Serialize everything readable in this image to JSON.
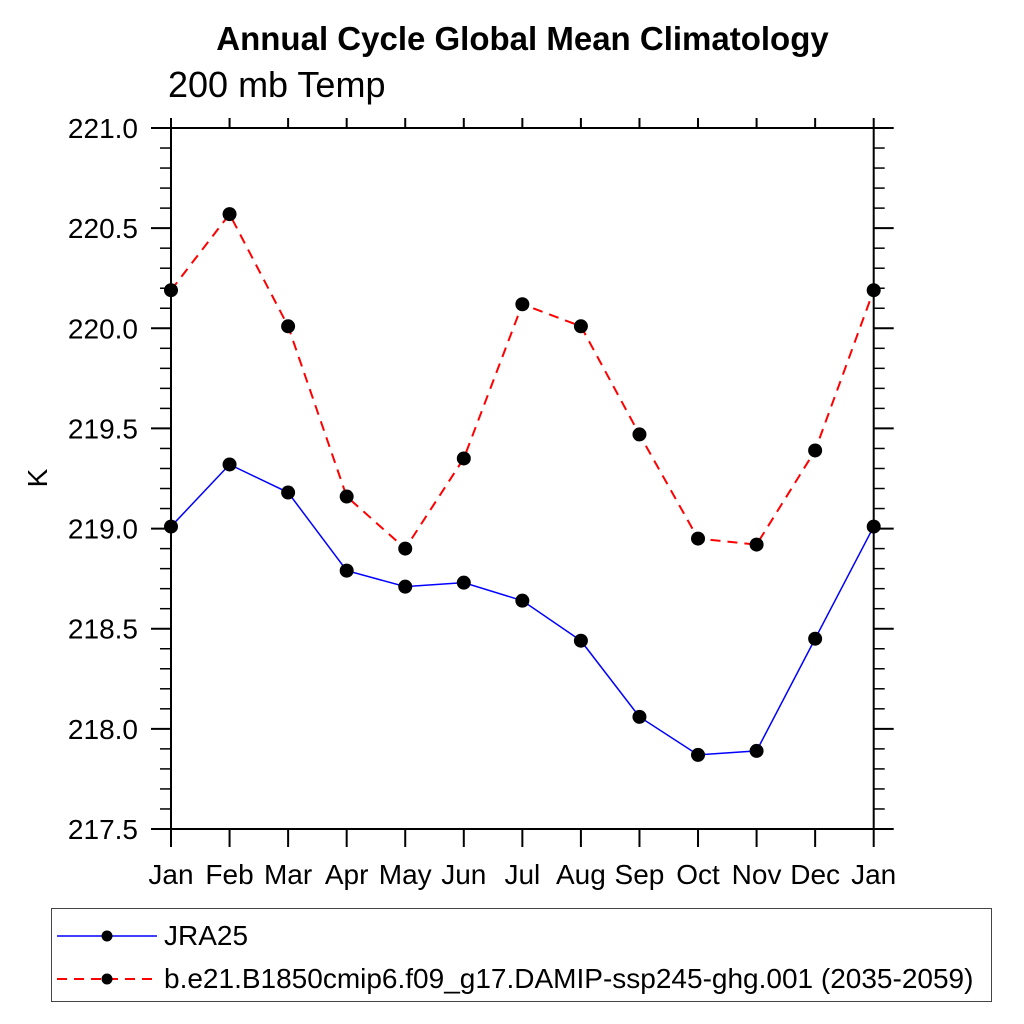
{
  "title": "Annual Cycle Global Mean Climatology",
  "subtitle": "200 mb Temp",
  "ylabel": "K",
  "chart_data": {
    "type": "line",
    "categories": [
      "Jan",
      "Feb",
      "Mar",
      "Apr",
      "May",
      "Jun",
      "Jul",
      "Aug",
      "Sep",
      "Oct",
      "Nov",
      "Dec",
      "Jan"
    ],
    "ylim": [
      217.5,
      221.0
    ],
    "y_tick_labels": [
      "217.5",
      "218.0",
      "218.5",
      "219.0",
      "219.5",
      "220.0",
      "220.5",
      "221.0"
    ],
    "y_minor_step": 0.1,
    "grid": false,
    "legend_position": "bottom-left-box",
    "series": [
      {
        "name": "JRA25",
        "color": "#0000ff",
        "line_style": "solid",
        "marker": "filled-circle",
        "marker_color": "#000000",
        "values": [
          219.01,
          219.32,
          219.18,
          218.79,
          218.71,
          218.73,
          218.64,
          218.44,
          218.06,
          217.87,
          217.89,
          218.45,
          219.01
        ]
      },
      {
        "name": "b.e21.B1850cmip6.f09_g17.DAMIP-ssp245-ghg.001 (2035-2059)",
        "color": "#ff0000",
        "line_style": "dashed",
        "marker": "filled-circle",
        "marker_color": "#000000",
        "values": [
          220.19,
          220.57,
          220.01,
          219.16,
          218.9,
          219.35,
          220.12,
          220.01,
          219.47,
          218.95,
          218.92,
          219.39,
          220.19
        ]
      }
    ]
  }
}
